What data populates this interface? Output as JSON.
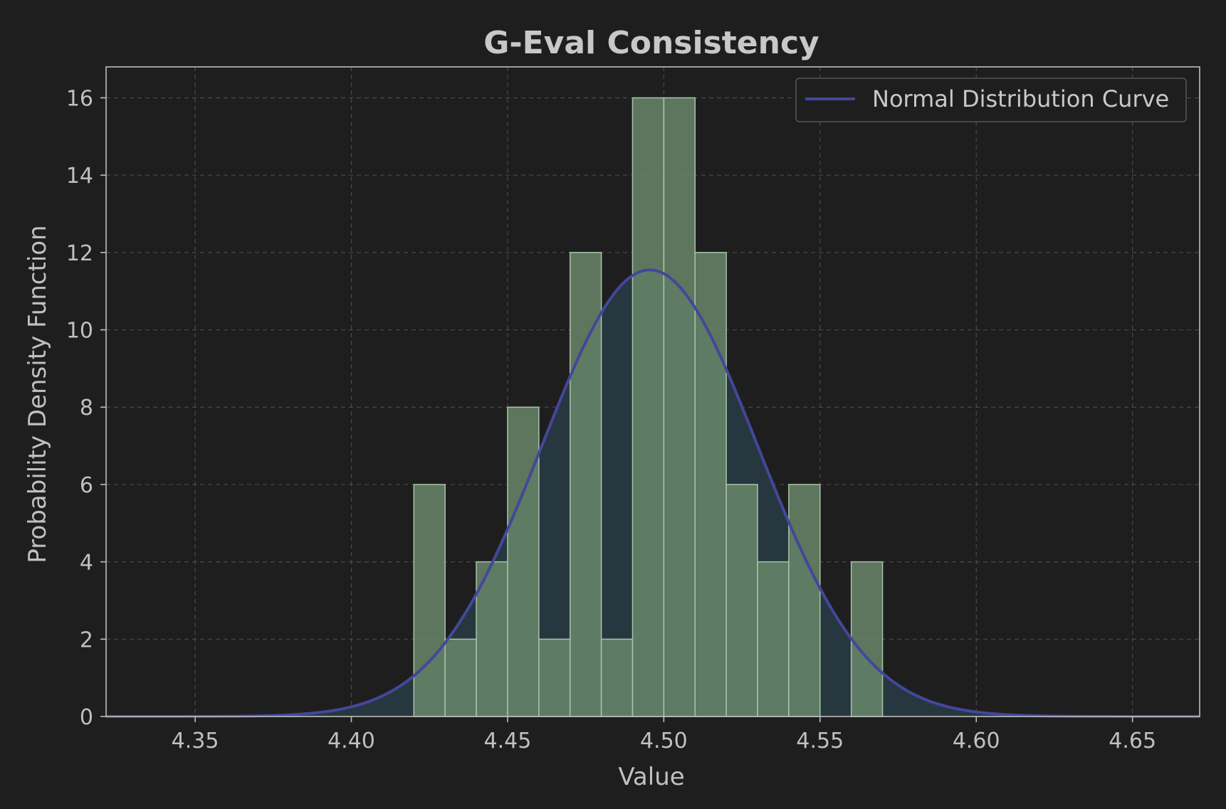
{
  "chart_data": {
    "type": "bar",
    "title": "G-Eval Consistency",
    "xlabel": "Value",
    "ylabel": "Probability Density Function",
    "xlim": [
      4.3215,
      4.6715
    ],
    "ylim": [
      0,
      16.8
    ],
    "xticks": [
      4.35,
      4.4,
      4.45,
      4.5,
      4.55,
      4.6,
      4.65
    ],
    "xtick_labels": [
      "4.35",
      "4.40",
      "4.45",
      "4.50",
      "4.55",
      "4.60",
      "4.65"
    ],
    "yticks": [
      0,
      2,
      4,
      6,
      8,
      10,
      12,
      14,
      16
    ],
    "ytick_labels": [
      "0",
      "2",
      "4",
      "6",
      "8",
      "10",
      "12",
      "14",
      "16"
    ],
    "grid": true,
    "legend_position": "top-right",
    "bin_width": 0.01,
    "series": [
      {
        "kind": "histogram",
        "color": "#6b8a6b",
        "bins": [
          {
            "x0": 4.42,
            "x1": 4.43,
            "value": 6
          },
          {
            "x0": 4.43,
            "x1": 4.44,
            "value": 2
          },
          {
            "x0": 4.44,
            "x1": 4.45,
            "value": 4
          },
          {
            "x0": 4.45,
            "x1": 4.46,
            "value": 8
          },
          {
            "x0": 4.46,
            "x1": 4.47,
            "value": 2
          },
          {
            "x0": 4.47,
            "x1": 4.48,
            "value": 12
          },
          {
            "x0": 4.48,
            "x1": 4.49,
            "value": 2
          },
          {
            "x0": 4.49,
            "x1": 4.5,
            "value": 16
          },
          {
            "x0": 4.5,
            "x1": 4.51,
            "value": 16
          },
          {
            "x0": 4.51,
            "x1": 4.52,
            "value": 12
          },
          {
            "x0": 4.52,
            "x1": 4.53,
            "value": 6
          },
          {
            "x0": 4.53,
            "x1": 4.54,
            "value": 4
          },
          {
            "x0": 4.54,
            "x1": 4.55,
            "value": 6
          },
          {
            "x0": 4.56,
            "x1": 4.57,
            "value": 4
          }
        ]
      },
      {
        "kind": "normal-curve",
        "name": "Normal Distribution Curve",
        "color": "#44479a",
        "fill_color": "#263740",
        "mean": 4.4955,
        "std": 0.0345,
        "peak": 11.55
      }
    ]
  }
}
